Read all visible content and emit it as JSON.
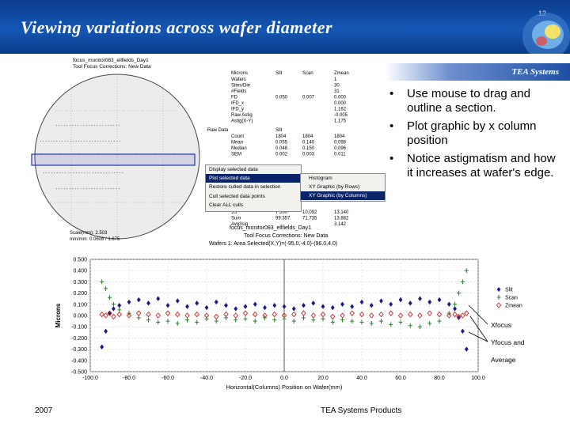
{
  "slide": {
    "title": "Viewing variations across wafer diameter",
    "number": "12",
    "brand": "TEA Systems",
    "bullets": [
      "Use mouse to drag and outline a section.",
      "Plot graphic by x column position",
      "Notice astigmatism and how it increases at wafer's edge."
    ],
    "footer_year": "2007",
    "footer_products": "TEA Systems Products"
  },
  "wafer_view": {
    "title_line1": "focus_monitor083_ellfields_Day1",
    "title_line2": "Tool Focus Corrections: New Data",
    "stats_headers": [
      "Microns",
      "Slit",
      "Scan",
      "Zmean"
    ],
    "stats_rows": [
      {
        "label": "Wafers",
        "values": [
          "",
          "",
          "1"
        ]
      },
      {
        "label": "Sites/Die",
        "values": [
          "",
          "",
          "30"
        ]
      },
      {
        "label": "#Fields",
        "values": [
          "",
          "",
          "31"
        ]
      },
      {
        "label": "FD",
        "values": [
          "0.050",
          "0.007",
          "0.000"
        ]
      },
      {
        "label": "IFD_x",
        "values": [
          "",
          "",
          "0.000"
        ]
      },
      {
        "label": "IFD_y",
        "values": [
          "",
          "",
          "1.162"
        ]
      },
      {
        "label": "Raw Astig",
        "values": [
          "",
          "",
          "-0.005"
        ]
      },
      {
        "label": "Astig(X-Y)",
        "values": [
          "",
          "",
          "1.175"
        ]
      }
    ],
    "raw_headers": [
      "Raw Data",
      "Slit"
    ],
    "raw_rows": [
      {
        "label": "Count",
        "values": [
          "1804",
          "1804",
          "1804"
        ]
      },
      {
        "label": "Mean",
        "values": [
          "0.055",
          "0.140",
          "0.098"
        ]
      },
      {
        "label": "Median",
        "values": [
          "0.048",
          "0.150",
          "0.096"
        ]
      },
      {
        "label": "SEM",
        "values": [
          "0.002",
          "0.003",
          "0.011"
        ]
      }
    ],
    "lower_rows": [
      {
        "label": "3S",
        "values": [
          "7.500",
          "10.092",
          "13.140"
        ]
      },
      {
        "label": "Sum",
        "values": [
          "99.357",
          "71.735",
          "13.882"
        ]
      },
      {
        "label": "Avg3sig",
        "values": [
          "",
          "",
          "3.142"
        ]
      }
    ],
    "status_line1": "Scale(mm): 2.503",
    "status_line2": "mm/mm: 0.0608 / 1.675",
    "context_menu": [
      "Display selected data",
      "Plot selected data",
      "Restore culled data in selection",
      "Cull selected data points",
      "Clear ALL culls"
    ],
    "submenu": [
      "Histogram",
      "XY Graphic (by Rows)",
      "XY Graphic (by Columns)"
    ]
  },
  "plot_header": {
    "line1": "focus_monitor083_ellfields_Day1",
    "line2": "Tool Focus Corrections: New Data",
    "line3": "Wafers 1: Area Selected(X,Y)=(-95.0,-4.0)-(96.0,4.0)"
  },
  "chart_data": {
    "type": "scatter",
    "xlabel": "Horizontal(Columns) Position on Wafer(mm)",
    "ylabel": "Microns",
    "xlim": [
      -100,
      100
    ],
    "ylim": [
      -0.5,
      0.5
    ],
    "x_ticks": [
      "-100.0",
      "-80.0",
      "-60.0",
      "-40.0",
      "-20.0",
      "0.0",
      "20.0",
      "40.0",
      "60.0",
      "80.0",
      "100.0"
    ],
    "y_ticks": [
      "0.500",
      "0.400",
      "0.300",
      "0.200",
      "0.100",
      "0.000",
      "-0.100",
      "-0.200",
      "-0.300",
      "-0.400",
      "-0.500"
    ],
    "series": [
      {
        "name": "Slit",
        "color": "#1a1a8c",
        "marker": "diamond",
        "x": [
          -94,
          -92,
          -90,
          -88,
          -85,
          -80,
          -75,
          -70,
          -65,
          -60,
          -55,
          -50,
          -45,
          -40,
          -35,
          -30,
          -25,
          -20,
          -15,
          -10,
          -5,
          0,
          5,
          10,
          15,
          20,
          25,
          30,
          35,
          40,
          45,
          50,
          55,
          60,
          65,
          70,
          75,
          80,
          85,
          88,
          90,
          92,
          94
        ],
        "y": [
          -0.28,
          -0.14,
          0.02,
          0.06,
          0.09,
          0.12,
          0.14,
          0.11,
          0.15,
          0.09,
          0.13,
          0.08,
          0.11,
          0.07,
          0.12,
          0.09,
          0.06,
          0.08,
          0.1,
          0.07,
          0.09,
          0.08,
          0.06,
          0.09,
          0.11,
          0.08,
          0.07,
          0.1,
          0.08,
          0.12,
          0.09,
          0.13,
          0.1,
          0.14,
          0.11,
          0.15,
          0.12,
          0.14,
          0.1,
          0.06,
          -0.02,
          -0.14,
          -0.3
        ]
      },
      {
        "name": "Scan",
        "color": "#2e7d32",
        "marker": "plus",
        "x": [
          -94,
          -92,
          -90,
          -88,
          -85,
          -80,
          -75,
          -70,
          -65,
          -60,
          -55,
          -50,
          -45,
          -40,
          -35,
          -30,
          -25,
          -20,
          -15,
          -10,
          -5,
          0,
          5,
          10,
          15,
          20,
          25,
          30,
          35,
          40,
          45,
          50,
          55,
          60,
          65,
          70,
          75,
          80,
          85,
          88,
          90,
          92,
          94
        ],
        "y": [
          0.3,
          0.24,
          0.16,
          0.1,
          0.05,
          0.02,
          -0.02,
          -0.04,
          -0.06,
          -0.05,
          -0.07,
          -0.04,
          -0.06,
          -0.03,
          -0.05,
          -0.02,
          -0.04,
          -0.03,
          -0.05,
          -0.02,
          -0.04,
          -0.03,
          -0.05,
          -0.02,
          -0.04,
          -0.03,
          -0.06,
          -0.04,
          -0.05,
          -0.06,
          -0.07,
          -0.05,
          -0.08,
          -0.06,
          -0.09,
          -0.1,
          -0.07,
          -0.05,
          0.02,
          0.1,
          0.2,
          0.3,
          0.4
        ]
      },
      {
        "name": "Zmean",
        "color": "#c62828",
        "marker": "diamond-open",
        "x": [
          -94,
          -92,
          -90,
          -88,
          -85,
          -80,
          -75,
          -70,
          -65,
          -60,
          -55,
          -50,
          -45,
          -40,
          -35,
          -30,
          -25,
          -20,
          -15,
          -10,
          -5,
          0,
          5,
          10,
          15,
          20,
          25,
          30,
          35,
          40,
          45,
          50,
          55,
          60,
          65,
          70,
          75,
          80,
          85,
          88,
          90,
          92,
          94
        ],
        "y": [
          0.01,
          0.0,
          0.02,
          -0.01,
          0.01,
          0.0,
          0.02,
          0.01,
          0.0,
          0.02,
          0.01,
          0.0,
          0.01,
          0.0,
          -0.01,
          0.01,
          0.0,
          0.02,
          0.01,
          0.0,
          0.01,
          0.0,
          0.01,
          0.02,
          0.0,
          0.01,
          -0.01,
          0.0,
          0.02,
          0.01,
          0.0,
          0.01,
          0.02,
          0.0,
          0.01,
          0.0,
          0.02,
          0.01,
          0.0,
          0.01,
          -0.01,
          0.0,
          0.02
        ]
      }
    ],
    "legend": [
      "Slit",
      "Scan",
      "Zmean"
    ],
    "legend_position": "right",
    "annotations": [
      "Xfocus",
      "Yfocus and",
      "Average"
    ]
  }
}
